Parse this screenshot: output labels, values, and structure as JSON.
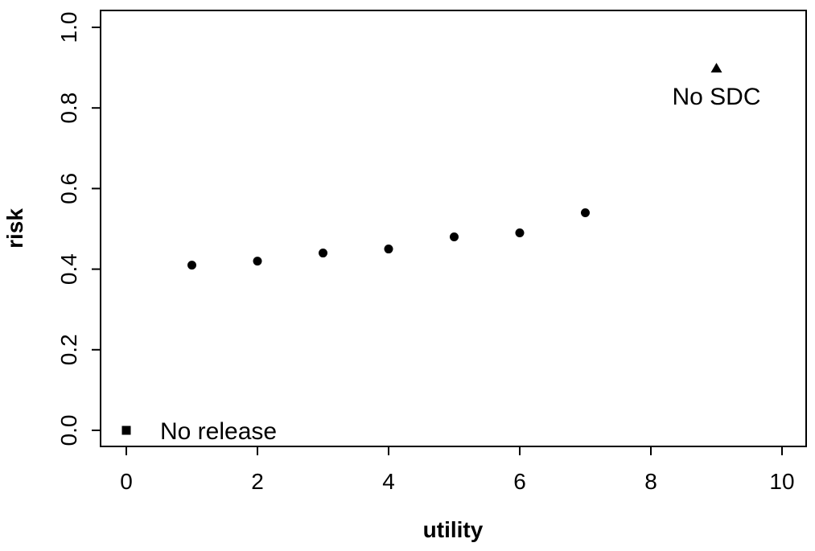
{
  "chart_data": {
    "type": "scatter",
    "title": "",
    "xlabel": "utility",
    "ylabel": "risk",
    "xlim": [
      0,
      10
    ],
    "ylim": [
      0,
      1
    ],
    "x_ticks": [
      0,
      2,
      4,
      6,
      8,
      10
    ],
    "y_ticks": [
      0.0,
      0.2,
      0.4,
      0.6,
      0.8,
      1.0
    ],
    "x_tick_labels": [
      "0",
      "2",
      "4",
      "6",
      "8",
      "10"
    ],
    "y_tick_labels": [
      "0.0",
      "0.2",
      "0.4",
      "0.6",
      "0.8",
      "1.0"
    ],
    "grid": false,
    "series": [
      {
        "marker": "circle",
        "x": [
          1,
          2,
          3,
          4,
          5,
          6,
          7
        ],
        "y": [
          0.41,
          0.42,
          0.44,
          0.45,
          0.48,
          0.49,
          0.54
        ]
      },
      {
        "marker": "square",
        "label": "No release",
        "x": [
          0
        ],
        "y": [
          0.0
        ]
      },
      {
        "marker": "triangle",
        "label": "No SDC",
        "x": [
          9
        ],
        "y": [
          0.9
        ]
      }
    ],
    "marker_color": "#000000"
  }
}
